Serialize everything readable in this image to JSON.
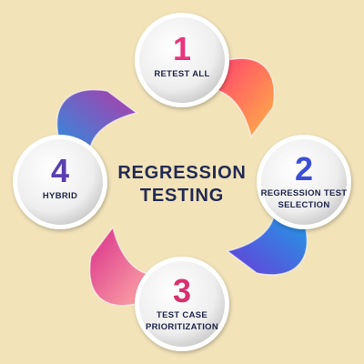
{
  "diagram": {
    "title": "REGRESSION\nTESTING",
    "steps": [
      {
        "number": "1",
        "label": "RETEST ALL",
        "color": "#e8357d"
      },
      {
        "number": "2",
        "label": "REGRESSION TEST\nSELECTION",
        "color": "#3b4fd6"
      },
      {
        "number": "3",
        "label": "TEST CASE\nPRIORITIZATION",
        "color": "#d9306f"
      },
      {
        "number": "4",
        "label": "HYBRID",
        "color": "#5b3fb0"
      }
    ],
    "colors": {
      "background": "#f2e3b9",
      "arc_1_2": [
        "#ff3d6e",
        "#ffb347"
      ],
      "arc_2_3": [
        "#6a3bd6",
        "#1e9fe8"
      ],
      "arc_3_4": [
        "#ffb0a8",
        "#d92e8a"
      ],
      "arc_4_1": [
        "#2a8fe0",
        "#b23aa8"
      ]
    }
  }
}
